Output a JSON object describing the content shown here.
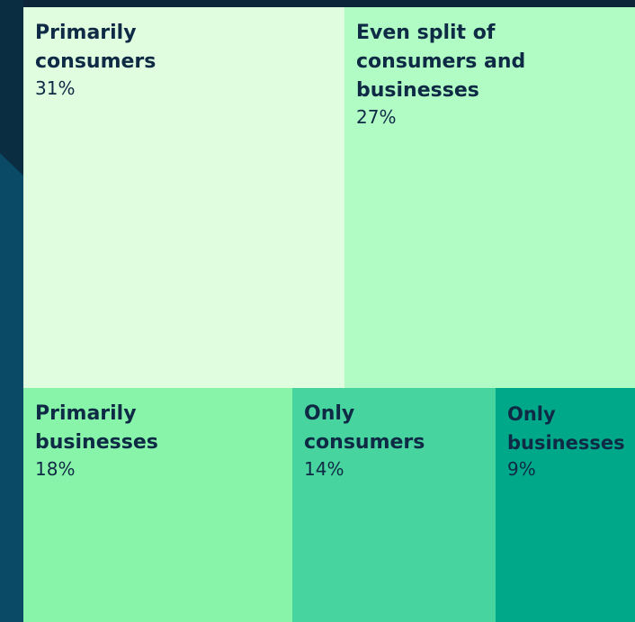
{
  "chart_data": {
    "type": "treemap",
    "title": "",
    "items": [
      {
        "label": "Primarily\nconsumers",
        "value": 31,
        "display": "31%",
        "color": "#e0fde0"
      },
      {
        "label": "Even split of\nconsumers and\nbusinesses",
        "value": 27,
        "display": "27%",
        "color": "#b1fcc5"
      },
      {
        "label": "Primarily\nbusinesses",
        "value": 18,
        "display": "18%",
        "color": "#88f4aa"
      },
      {
        "label": "Only\nconsumers",
        "value": 14,
        "display": "14%",
        "color": "#47d49e"
      },
      {
        "label": "Only\nbusinesses",
        "value": 9,
        "display": "9%",
        "color": "#00a88a"
      }
    ]
  }
}
